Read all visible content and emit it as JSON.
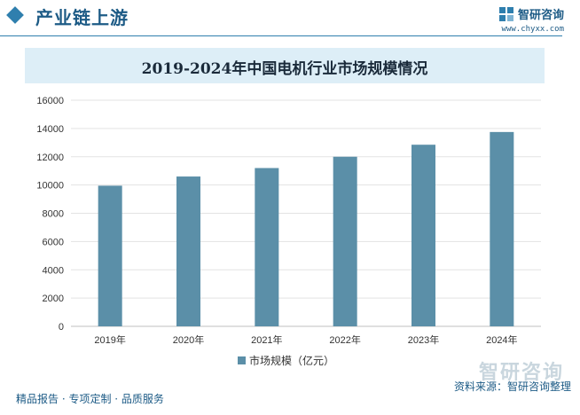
{
  "header": {
    "title": "产业链上游"
  },
  "brand": {
    "name": "智研咨询",
    "url": "www.chyxx.com"
  },
  "chart_data": {
    "type": "bar",
    "title": "2019-2024年中国电机行业市场规模情况",
    "categories": [
      "2019年",
      "2020年",
      "2021年",
      "2022年",
      "2023年",
      "2024年"
    ],
    "series": [
      {
        "name": "市场规模（亿元）",
        "values": [
          9950,
          10600,
          11200,
          12000,
          12850,
          13750
        ]
      }
    ],
    "ylim": [
      0,
      16000
    ],
    "yticks": [
      "0",
      "2000",
      "4000",
      "6000",
      "8000",
      "10000",
      "12000",
      "14000",
      "16000"
    ],
    "grid": true,
    "legend": "bottom",
    "bar_color": "#5b8fa8"
  },
  "footer": {
    "left": "精品报告 · 专项定制 · 品质服务",
    "source": "资料来源：智研咨询整理",
    "watermark_text": "智研咨询"
  }
}
